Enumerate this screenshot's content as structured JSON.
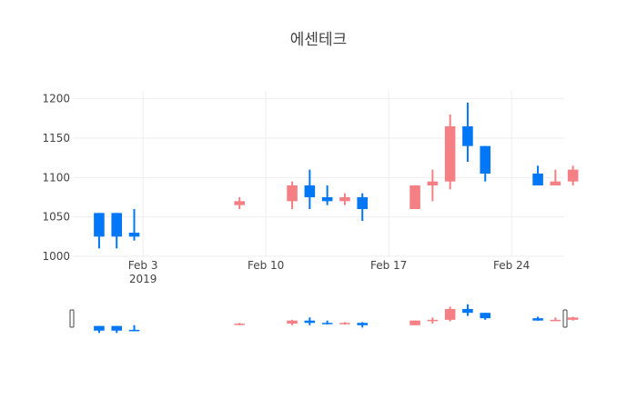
{
  "chart_data": {
    "type": "candlestick",
    "title": "에센테크",
    "xlabel": "",
    "ylabel": "",
    "ylim": [
      1000,
      1210
    ],
    "grid": true,
    "legend": "none",
    "colors": {
      "increasing": "#F47F84",
      "decreasing": "#0077F7"
    },
    "x_ticks": [
      {
        "date": "2019-02-03",
        "label": "Feb 3",
        "sublabel": "2019"
      },
      {
        "date": "2019-02-10",
        "label": "Feb 10",
        "sublabel": ""
      },
      {
        "date": "2019-02-17",
        "label": "Feb 17",
        "sublabel": ""
      },
      {
        "date": "2019-02-24",
        "label": "Feb 24",
        "sublabel": ""
      }
    ],
    "y_ticks": [
      1000,
      1050,
      1100,
      1150,
      1200
    ],
    "x_range": [
      "2019-01-30",
      "2019-02-27"
    ],
    "candles": [
      {
        "date": "2019-01-31",
        "open": 1055,
        "high": 1055,
        "low": 1010,
        "close": 1025
      },
      {
        "date": "2019-02-01",
        "open": 1055,
        "high": 1055,
        "low": 1010,
        "close": 1025
      },
      {
        "date": "2019-02-02",
        "open": 1030,
        "high": 1060,
        "low": 1020,
        "close": 1025
      },
      {
        "date": "2019-02-08",
        "open": 1065,
        "high": 1075,
        "low": 1060,
        "close": 1070
      },
      {
        "date": "2019-02-11",
        "open": 1070,
        "high": 1095,
        "low": 1060,
        "close": 1090
      },
      {
        "date": "2019-02-12",
        "open": 1090,
        "high": 1110,
        "low": 1060,
        "close": 1075
      },
      {
        "date": "2019-02-13",
        "open": 1075,
        "high": 1090,
        "low": 1065,
        "close": 1070
      },
      {
        "date": "2019-02-14",
        "open": 1070,
        "high": 1080,
        "low": 1065,
        "close": 1075
      },
      {
        "date": "2019-02-15",
        "open": 1075,
        "high": 1080,
        "low": 1045,
        "close": 1060
      },
      {
        "date": "2019-02-18",
        "open": 1060,
        "high": 1090,
        "low": 1060,
        "close": 1090
      },
      {
        "date": "2019-02-19",
        "open": 1090,
        "high": 1110,
        "low": 1070,
        "close": 1095
      },
      {
        "date": "2019-02-20",
        "open": 1095,
        "high": 1180,
        "low": 1085,
        "close": 1165
      },
      {
        "date": "2019-02-21",
        "open": 1165,
        "high": 1195,
        "low": 1120,
        "close": 1140
      },
      {
        "date": "2019-02-22",
        "open": 1140,
        "high": 1140,
        "low": 1095,
        "close": 1105
      },
      {
        "date": "2019-02-25",
        "open": 1105,
        "high": 1115,
        "low": 1090,
        "close": 1090
      },
      {
        "date": "2019-02-26",
        "open": 1090,
        "high": 1110,
        "low": 1090,
        "close": 1095
      },
      {
        "date": "2019-02-27",
        "open": 1095,
        "high": 1115,
        "low": 1090,
        "close": 1110
      }
    ]
  }
}
